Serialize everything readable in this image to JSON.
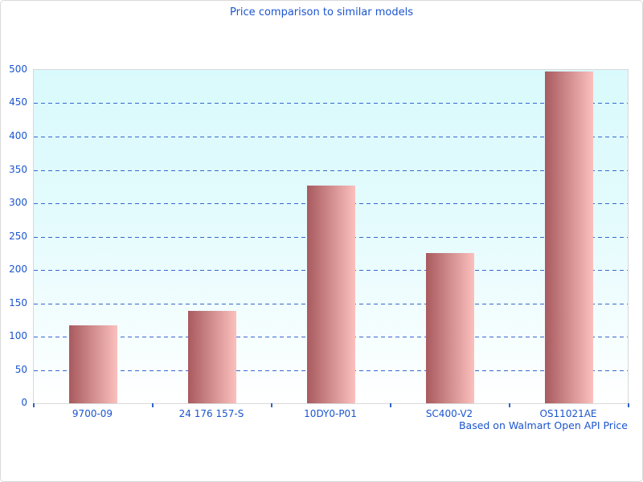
{
  "window": {
    "background": "#ffffff",
    "border_color": "#d9d9d9"
  },
  "chart_data": {
    "type": "bar",
    "title": "Price comparison to similar models",
    "footnote": "Based on Walmart Open API Price",
    "categories": [
      "9700-09",
      "24 176 157-S",
      "10DY0-P01",
      "SC400-V2",
      "OS11021AE"
    ],
    "values": [
      117,
      139,
      327,
      225,
      497
    ],
    "xlabel": "",
    "ylabel": "",
    "ylim": [
      0,
      500
    ],
    "yticks": [
      0,
      50,
      100,
      150,
      200,
      250,
      300,
      350,
      400,
      450,
      500
    ],
    "grid": "horizontal-dashed",
    "legend": "none",
    "colors": {
      "text_blue": "#1b55cf",
      "grid_blue": "#3567cd",
      "tick_blue": "#2e62cc",
      "bar_gradient_left": "#a85a5e",
      "bar_gradient_right": "#fbc0bd",
      "plot_bg_top": "#d9fafc",
      "plot_bg_bottom": "#ffffff",
      "plot_border": "#d8d8d8"
    }
  }
}
